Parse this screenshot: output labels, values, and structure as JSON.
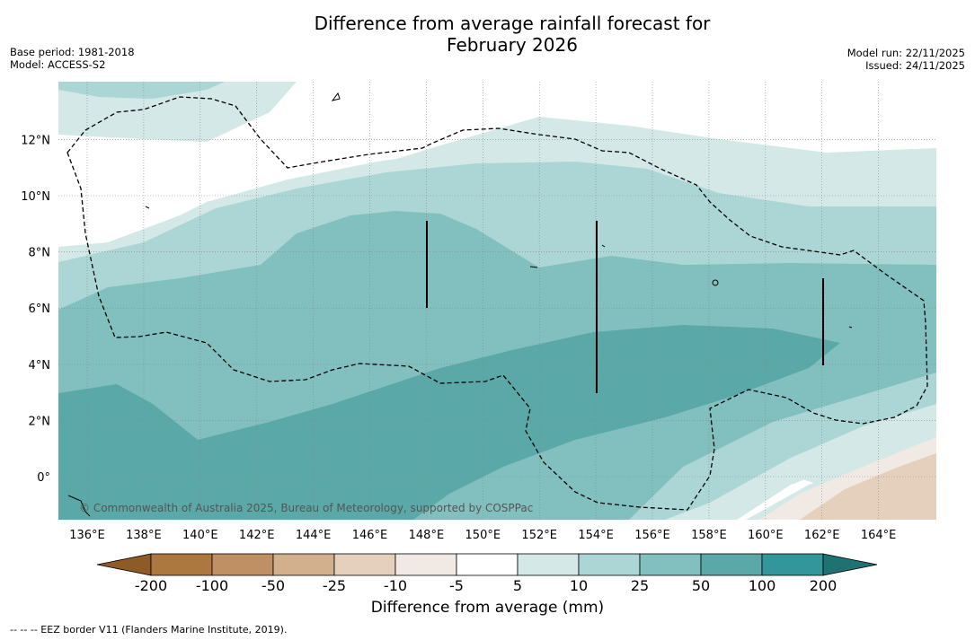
{
  "title_line1": "Difference from average rainfall forecast for",
  "title_line2": "February 2026",
  "meta_left": {
    "base_period": "Base period: 1981-2018",
    "model": "Model: ACCESS-S2"
  },
  "meta_right": {
    "model_run": "Model run: 22/11/2025",
    "issued": "Issued: 24/11/2025"
  },
  "lat_labels": [
    "12°N",
    "10°N",
    "8°N",
    "6°N",
    "4°N",
    "2°N",
    "0°"
  ],
  "lon_labels": [
    "136°E",
    "138°E",
    "140°E",
    "142°E",
    "144°E",
    "146°E",
    "148°E",
    "150°E",
    "152°E",
    "154°E",
    "156°E",
    "158°E",
    "160°E",
    "162°E",
    "164°E"
  ],
  "copyright": "© Commonwealth of Australia 2025, Bureau of Meteorology, supported by COSPPac",
  "colorbar": {
    "labels": [
      "-200",
      "-100",
      "-50",
      "-25",
      "-10",
      "-5",
      "5",
      "10",
      "25",
      "50",
      "100",
      "200"
    ],
    "colors": [
      "#8e5a26",
      "#ad7840",
      "#c09065",
      "#d2b08e",
      "#e4d0bd",
      "#f1eae4",
      "#ffffff",
      "#d3e8e7",
      "#acd6d5",
      "#82c0bf",
      "#5aa8a7",
      "#33969a",
      "#1f7272"
    ],
    "title": "Difference from average (mm)"
  },
  "footer": "--  --  -- EEZ border V11 (Flanders Marine Institute, 2019).",
  "chart_data": {
    "type": "contour",
    "variable": "Difference from average rainfall (mm)",
    "lon_range": [
      135,
      166
    ],
    "lat_range": [
      -1.5,
      14
    ],
    "levels": [
      -200,
      -100,
      -50,
      -25,
      -10,
      -5,
      5,
      10,
      25,
      50,
      100,
      200
    ],
    "summary": "Wetter than average (10–100 mm) across most of the domain, strongest (50–100 mm) along 2–5°N; drier than average (-5 to -25 mm) in the far south-east corner near 162–166°E, 0°S."
  }
}
